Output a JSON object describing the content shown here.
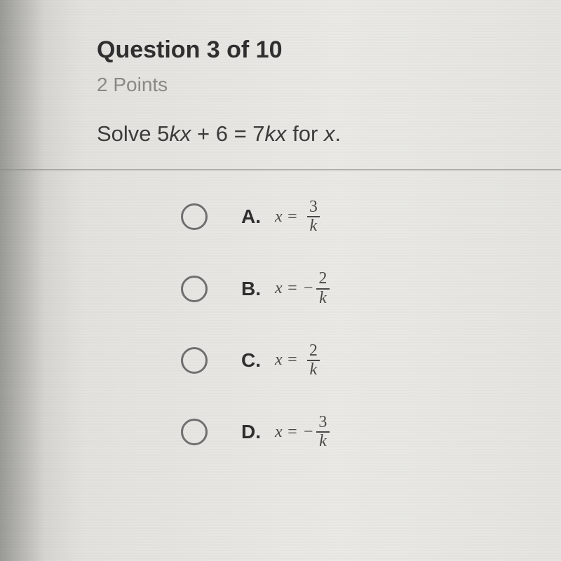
{
  "question": {
    "title": "Question 3 of 10",
    "points": "2 Points",
    "prompt_prefix": "Solve 5",
    "prompt_kx1": "kx",
    "prompt_mid": " + 6 = 7",
    "prompt_kx2": "kx",
    "prompt_for": " for ",
    "prompt_x": "x",
    "prompt_dot": "."
  },
  "options": [
    {
      "label": "A.",
      "xeq": "x =",
      "sign": "",
      "num": "3",
      "den": "k"
    },
    {
      "label": "B.",
      "xeq": "x =",
      "sign": "−",
      "num": "2",
      "den": "k"
    },
    {
      "label": "C.",
      "xeq": "x =",
      "sign": "",
      "num": "2",
      "den": "k"
    },
    {
      "label": "D.",
      "xeq": "x =",
      "sign": "−",
      "num": "3",
      "den": "k"
    }
  ],
  "style": {
    "bg_left": "#9a9a96",
    "bg_mid": "#e3e2de",
    "title_color": "#2f2f2f",
    "points_color": "#8a8a86",
    "text_color": "#3c3c3a",
    "radio_border": "#707070",
    "divider_color": "rgba(140,140,136,0.6)",
    "frac_bar": "#4a4a48"
  }
}
